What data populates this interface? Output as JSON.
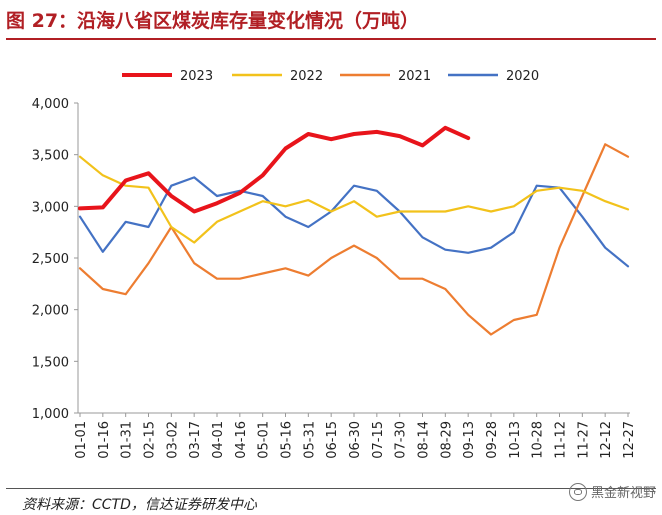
{
  "figure": {
    "title": "图 27：沿海八省区煤炭库存量变化情况（万吨）",
    "source": "资料来源：CCTD，信达证券研发中心",
    "watermark": "黑金新视野"
  },
  "chart_data": {
    "type": "line",
    "title": "",
    "xlabel": "",
    "ylabel": "",
    "ylim": [
      1000,
      4000
    ],
    "yticks": [
      1000,
      1500,
      2000,
      2500,
      3000,
      3500,
      4000
    ],
    "grid": false,
    "legend_position": "top",
    "categories": [
      "01-01",
      "01-16",
      "01-31",
      "02-15",
      "03-02",
      "03-17",
      "04-01",
      "04-16",
      "05-01",
      "05-16",
      "05-31",
      "06-15",
      "06-30",
      "07-15",
      "07-30",
      "08-14",
      "08-29",
      "09-13",
      "09-28",
      "10-13",
      "10-28",
      "11-12",
      "11-27",
      "12-12",
      "12-27"
    ],
    "series": [
      {
        "name": "2023",
        "color": "#e8141b",
        "values": [
          2980,
          2990,
          3250,
          3320,
          3100,
          2950,
          3030,
          3130,
          3300,
          3560,
          3700,
          3650,
          3700,
          3720,
          3680,
          3590,
          3760,
          3660,
          null,
          null,
          null,
          null,
          null,
          null,
          null
        ]
      },
      {
        "name": "2022",
        "color": "#f2c21b",
        "values": [
          3480,
          3300,
          3200,
          3180,
          2800,
          2650,
          2850,
          2950,
          3050,
          3000,
          3060,
          2950,
          3050,
          2900,
          2950,
          2950,
          2950,
          3000,
          2950,
          3000,
          3150,
          3180,
          3150,
          3050,
          2970
        ]
      },
      {
        "name": "2021",
        "color": "#ed7d31",
        "values": [
          2400,
          2200,
          2150,
          2450,
          2800,
          2450,
          2300,
          2300,
          2350,
          2400,
          2330,
          2500,
          2620,
          2500,
          2300,
          2300,
          2200,
          1950,
          1760,
          1900,
          1950,
          2600,
          3100,
          3600,
          3480
        ]
      },
      {
        "name": "2020",
        "color": "#4472c4",
        "values": [
          2900,
          2560,
          2850,
          2800,
          3200,
          3280,
          3100,
          3150,
          3100,
          2900,
          2800,
          2950,
          3200,
          3150,
          2950,
          2700,
          2580,
          2550,
          2600,
          2750,
          3200,
          3180,
          2900,
          2600,
          2420
        ]
      }
    ]
  }
}
